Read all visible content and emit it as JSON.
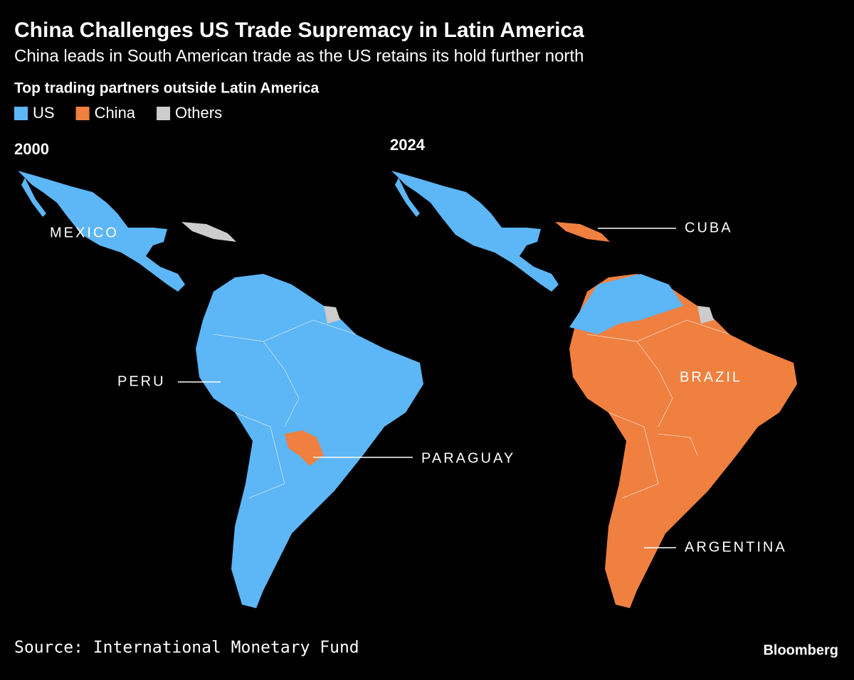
{
  "header": {
    "title": "China Challenges US Trade Supremacy in Latin America",
    "subtitle": "China leads in South American trade as the US retains its hold further north"
  },
  "legend": {
    "title": "Top trading partners outside Latin America",
    "items": [
      {
        "label": "US",
        "color": "#5db6f6"
      },
      {
        "label": "China",
        "color": "#f08040"
      },
      {
        "label": "Others",
        "color": "#cccccc"
      }
    ]
  },
  "maps": [
    {
      "year": "2000",
      "labels": [
        "MEXICO",
        "PERU",
        "PARAGUAY"
      ]
    },
    {
      "year": "2024",
      "labels": [
        "CUBA",
        "BRAZIL",
        "ARGENTINA"
      ]
    }
  ],
  "footer": {
    "source": "Source: International Monetary Fund",
    "brand": "Bloomberg"
  }
}
